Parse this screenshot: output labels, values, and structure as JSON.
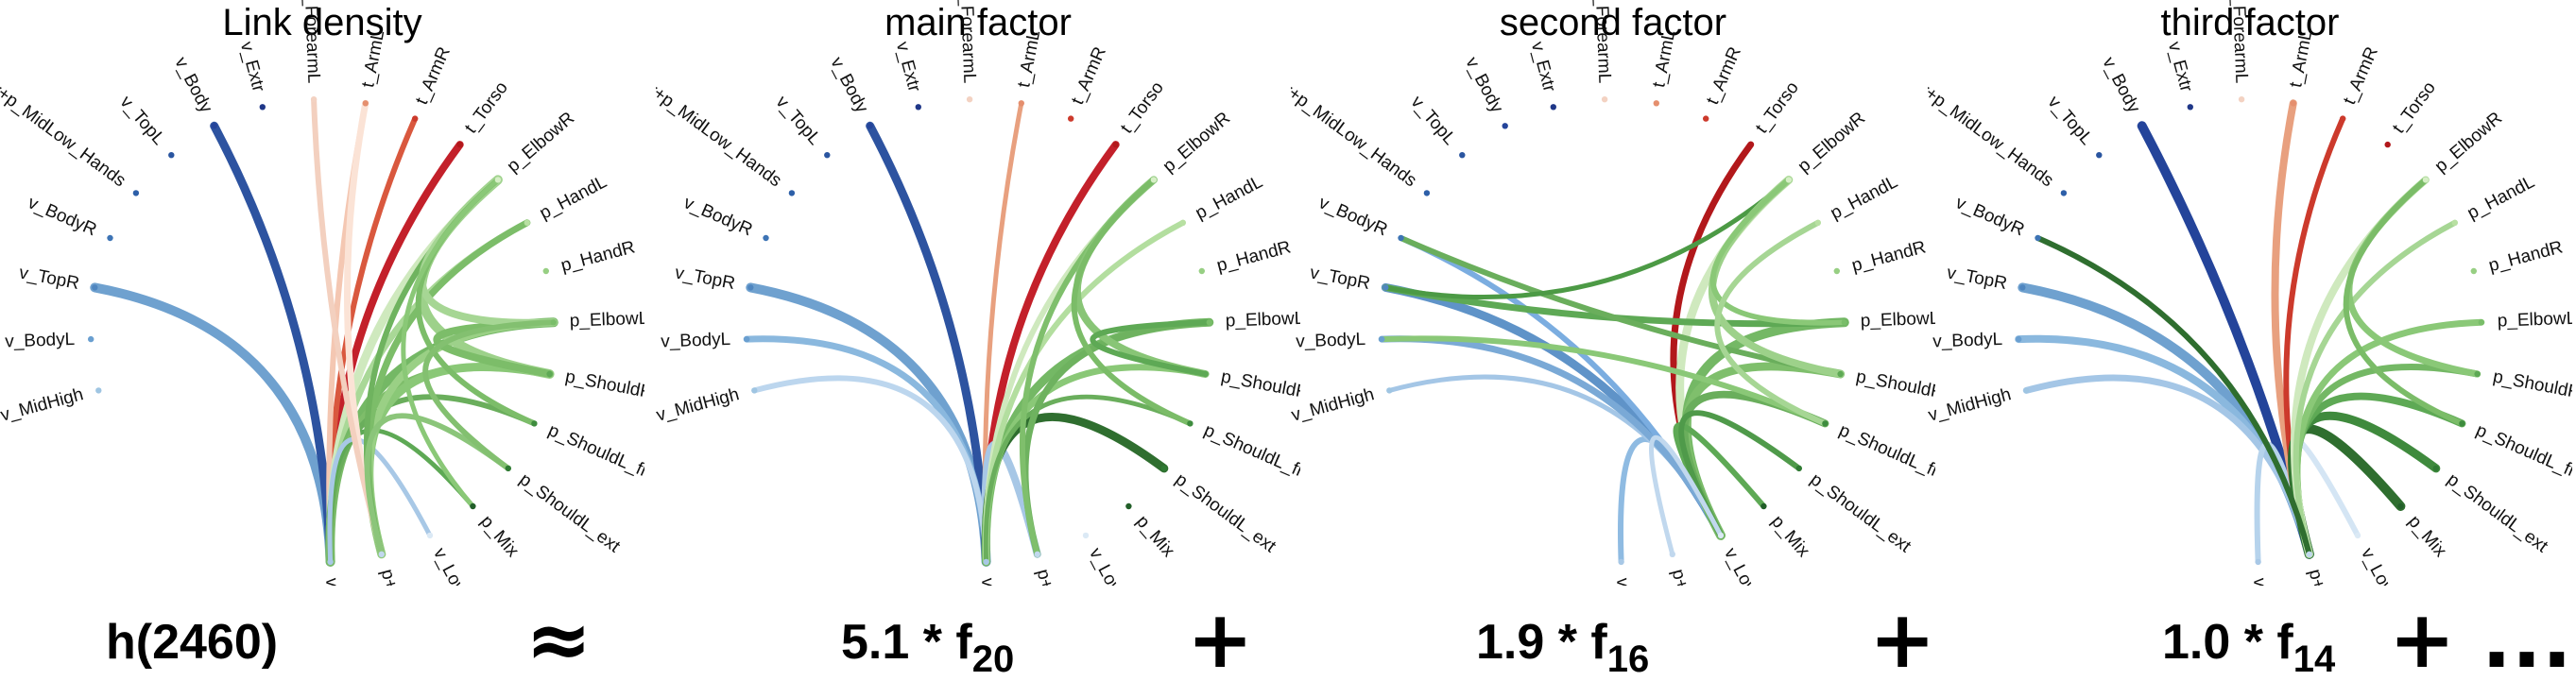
{
  "nodes": [
    {
      "label": "v_MidHigh",
      "color": "#9fc5e2"
    },
    {
      "label": "v_BodyL",
      "color": "#6a9fd0"
    },
    {
      "label": "v_TopR",
      "color": "#4f86c0"
    },
    {
      "label": "v_BodyR",
      "color": "#3e74b5"
    },
    {
      "label": "v+p_MidLow_Hands",
      "color": "#2d5fa8"
    },
    {
      "label": "v_TopL",
      "color": "#2a55a0"
    },
    {
      "label": "v_Body",
      "color": "#24449a"
    },
    {
      "label": "v_Extr",
      "color": "#1f3788"
    },
    {
      "label": "t_ForearmL",
      "color": "#f3d2c2"
    },
    {
      "label": "t_ArmL",
      "color": "#e58f6e"
    },
    {
      "label": "t_ArmR",
      "color": "#cc3a2c"
    },
    {
      "label": "t_Torso",
      "color": "#b2181b"
    },
    {
      "label": "p_ElbowR",
      "color": "#d6efc6"
    },
    {
      "label": "p_HandL",
      "color": "#b8e0a2"
    },
    {
      "label": "p_HandR",
      "color": "#97cf83"
    },
    {
      "label": "p_ElbowL",
      "color": "#79bd69"
    },
    {
      "label": "p_ShouldR",
      "color": "#5ea955"
    },
    {
      "label": "p_ShouldL_flex",
      "color": "#3e8c3e"
    },
    {
      "label": "p_ShouldL_ext",
      "color": "#2f7a33"
    },
    {
      "label": "p_Mix",
      "color": "#225f29"
    },
    {
      "label": "v_LowL",
      "color": "#dbe9f5"
    },
    {
      "label": "p+v_Elbows_LowR",
      "color": "#c1d8ee"
    },
    {
      "label": "v_MidLeft",
      "color": "#a8c8e6"
    }
  ],
  "panels": [
    {
      "title": "Link density",
      "formula": {
        "coef": "h(2460)",
        "sub": ""
      },
      "operator": "≈",
      "links": [
        [
          22,
          2,
          10,
          "#6fa1cf"
        ],
        [
          22,
          6,
          9,
          "#2d53a0"
        ],
        [
          22,
          11,
          8,
          "#c3202a"
        ],
        [
          22,
          10,
          6,
          "#d9583e"
        ],
        [
          22,
          9,
          6,
          "#f4c7b2"
        ],
        [
          22,
          12,
          9,
          "#cfe9be"
        ],
        [
          22,
          13,
          7,
          "#a9d897"
        ],
        [
          22,
          15,
          10,
          "#74b865"
        ],
        [
          22,
          16,
          8,
          "#7ebd6a"
        ],
        [
          22,
          17,
          6,
          "#6aae5c"
        ],
        [
          22,
          19,
          5,
          "#5ea955"
        ],
        [
          22,
          20,
          5,
          "#a8c8e6"
        ],
        [
          21,
          9,
          7,
          "#fbe3d6"
        ],
        [
          21,
          16,
          9,
          "#8ac877"
        ],
        [
          21,
          15,
          8,
          "#9ad085"
        ],
        [
          21,
          13,
          7,
          "#7cbd69"
        ],
        [
          21,
          12,
          6,
          "#6fb35f"
        ],
        [
          21,
          8,
          6,
          "#f3d0bf"
        ],
        [
          21,
          18,
          6,
          "#8bc57a"
        ],
        [
          16,
          12,
          10,
          "#9dd18a"
        ],
        [
          16,
          15,
          8,
          "#7cbd69"
        ],
        [
          15,
          12,
          8,
          "#a6d694"
        ],
        [
          17,
          12,
          6,
          "#7cbd69"
        ],
        [
          18,
          15,
          6,
          "#83c070"
        ],
        [
          19,
          12,
          5,
          "#8ac877"
        ]
      ]
    },
    {
      "title": "main factor",
      "formula": {
        "coef": "5.1 * f",
        "sub": "20"
      },
      "operator": "+",
      "links": [
        [
          22,
          2,
          10,
          "#6fa1cf"
        ],
        [
          22,
          6,
          9,
          "#2d53a0"
        ],
        [
          22,
          11,
          8,
          "#c3202a"
        ],
        [
          22,
          9,
          5,
          "#e8a07f"
        ],
        [
          22,
          1,
          7,
          "#8ab8de"
        ],
        [
          22,
          21,
          8,
          "#a7c7e6"
        ],
        [
          22,
          0,
          6,
          "#bcd6ee"
        ],
        [
          22,
          18,
          9,
          "#2f6e2f"
        ],
        [
          22,
          15,
          9,
          "#74b865"
        ],
        [
          22,
          16,
          7,
          "#8ac877"
        ],
        [
          22,
          12,
          6,
          "#cfe9be"
        ],
        [
          22,
          13,
          6,
          "#b3de9f"
        ],
        [
          22,
          17,
          5,
          "#6aae5c"
        ],
        [
          21,
          15,
          7,
          "#6eb25f"
        ],
        [
          21,
          12,
          6,
          "#7fbf6c"
        ],
        [
          16,
          12,
          8,
          "#88c576"
        ],
        [
          17,
          12,
          6,
          "#7bbc68"
        ],
        [
          16,
          15,
          6,
          "#5ea955"
        ]
      ]
    },
    {
      "title": "second factor",
      "formula": {
        "coef": "1.9 * f",
        "sub": "16"
      },
      "operator": "+",
      "links": [
        [
          20,
          2,
          9,
          "#5f93c8"
        ],
        [
          20,
          3,
          6,
          "#7bade0"
        ],
        [
          20,
          22,
          6,
          "#8fbbe2"
        ],
        [
          20,
          0,
          5,
          "#a4c6e6"
        ],
        [
          20,
          1,
          7,
          "#7aa9d6"
        ],
        [
          20,
          11,
          7,
          "#b2181b"
        ],
        [
          20,
          12,
          9,
          "#cfe9be"
        ],
        [
          20,
          15,
          10,
          "#74b865"
        ],
        [
          20,
          16,
          9,
          "#7fbf6c"
        ],
        [
          20,
          17,
          8,
          "#6aae5c"
        ],
        [
          20,
          19,
          6,
          "#5ea955"
        ],
        [
          20,
          18,
          6,
          "#4f9a4a"
        ],
        [
          20,
          21,
          5,
          "#c1d8ee"
        ],
        [
          2,
          15,
          7,
          "#5ea955"
        ],
        [
          3,
          16,
          6,
          "#6aae5c"
        ],
        [
          1,
          17,
          6,
          "#8ac877"
        ],
        [
          2,
          12,
          5,
          "#4c9a45"
        ],
        [
          16,
          12,
          8,
          "#9dd18a"
        ],
        [
          15,
          12,
          6,
          "#8ac877"
        ],
        [
          17,
          13,
          6,
          "#a6d694"
        ]
      ]
    },
    {
      "title": "third factor",
      "formula": {
        "coef": "1.0 * f",
        "sub": "14"
      },
      "operator": "+",
      "trailing": "...",
      "links": [
        [
          21,
          2,
          10,
          "#6fa1cf"
        ],
        [
          21,
          6,
          10,
          "#24449a"
        ],
        [
          21,
          1,
          8,
          "#8ab8de"
        ],
        [
          21,
          0,
          7,
          "#a4c6e6"
        ],
        [
          21,
          22,
          6,
          "#b6d3ec"
        ],
        [
          21,
          20,
          6,
          "#d4e5f4"
        ],
        [
          21,
          9,
          8,
          "#e8a07f"
        ],
        [
          21,
          10,
          6,
          "#cc3a2c"
        ],
        [
          21,
          19,
          10,
          "#2f6e2f"
        ],
        [
          21,
          18,
          9,
          "#3f8a3d"
        ],
        [
          21,
          17,
          8,
          "#5ea955"
        ],
        [
          21,
          16,
          7,
          "#74b865"
        ],
        [
          21,
          15,
          7,
          "#8ac877"
        ],
        [
          21,
          12,
          8,
          "#cfe9be"
        ],
        [
          21,
          13,
          6,
          "#a6d694"
        ],
        [
          21,
          3,
          6,
          "#2f6e2f"
        ],
        [
          16,
          12,
          7,
          "#8ac877"
        ],
        [
          17,
          12,
          6,
          "#7bbc68"
        ]
      ]
    }
  ]
}
